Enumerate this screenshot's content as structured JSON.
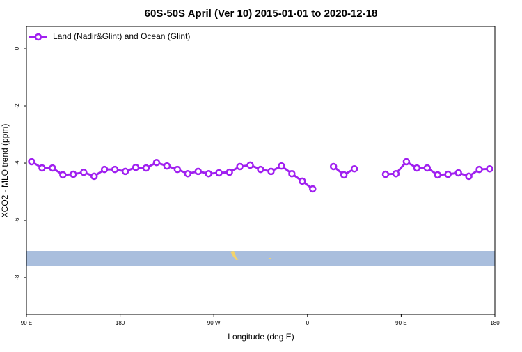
{
  "chart_data": {
    "type": "line",
    "title": "60S-50S April (Ver 10)   2015-01-01 to 2020-12-18",
    "xlabel": "Longitude (deg E)",
    "ylabel": "XCO2 - MLO trend (ppm)",
    "legend": "top-left",
    "x": [
      95,
      105,
      115,
      125,
      135,
      145,
      155,
      165,
      175,
      185,
      195,
      205,
      215,
      225,
      235,
      245,
      255,
      265,
      275,
      285,
      295,
      305,
      315,
      325,
      335,
      345,
      355,
      365,
      375,
      385,
      395,
      405,
      415,
      425,
      435,
      445,
      455,
      465,
      475,
      485,
      495,
      505,
      515,
      525,
      535
    ],
    "series": [
      {
        "name": "Land (Nadir&Glint) and Ocean (Glint)",
        "color": "#a020f0",
        "values": [
          -3.95,
          -4.17,
          -4.17,
          -4.41,
          -4.39,
          -4.32,
          -4.46,
          -4.22,
          -4.22,
          -4.29,
          -4.15,
          -4.17,
          -3.98,
          -4.1,
          -4.22,
          -4.37,
          -4.29,
          -4.37,
          -4.34,
          -4.32,
          -4.12,
          -4.07,
          -4.22,
          -4.29,
          -4.1,
          -4.37,
          -4.63,
          -4.9,
          null,
          -4.12,
          -4.41,
          -4.2,
          null,
          null,
          -4.39,
          -4.37,
          -3.95,
          -4.17,
          -4.17,
          -4.41,
          -4.39,
          -4.34,
          -4.46,
          -4.22,
          -4.2
        ]
      }
    ],
    "xlim": [
      90,
      540
    ],
    "xticks": [
      {
        "value": 90,
        "label": "90 E"
      },
      {
        "value": 180,
        "label": "180"
      },
      {
        "value": 270,
        "label": "90 W"
      },
      {
        "value": 360,
        "label": "0"
      },
      {
        "value": 450,
        "label": "90 E"
      },
      {
        "value": 540,
        "label": "180"
      }
    ],
    "ylim": [
      -9.29,
      0.78
    ],
    "yticks": [
      0,
      -2,
      -4,
      -6,
      -8
    ]
  }
}
